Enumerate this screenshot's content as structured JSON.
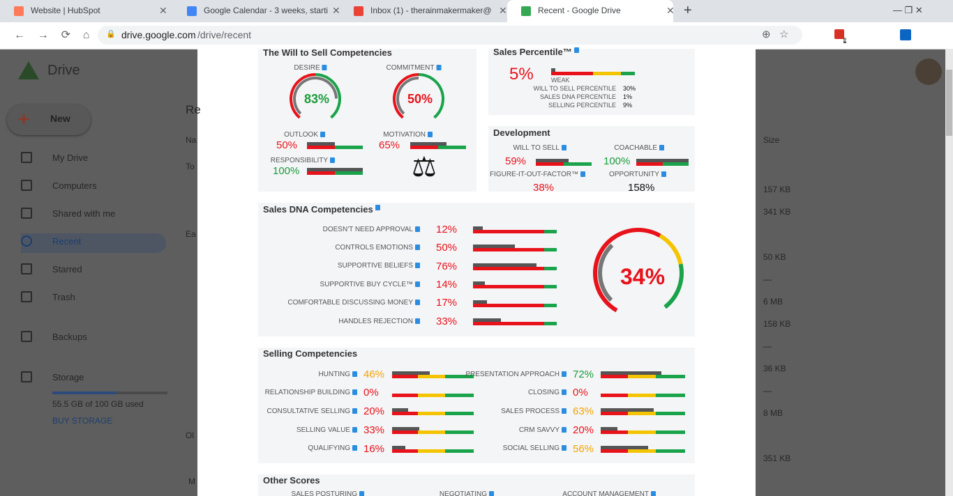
{
  "browser": {
    "tabs": [
      "Website | HubSpot",
      "Google Calendar - 3 weeks, starti",
      "Inbox (1) - therainmakermaker@",
      "Recent - Google Drive"
    ],
    "url_host": "drive.google.com",
    "url_path": "/drive/recent",
    "badge": "4"
  },
  "drive": {
    "logo": "Drive",
    "new": "New",
    "nav": [
      "My Drive",
      "Computers",
      "Shared with me",
      "Recent",
      "Starred",
      "Trash",
      "Backups",
      "Storage"
    ],
    "storage_used": "55.5 GB of 100 GB used",
    "buy": "BUY STORAGE",
    "list_partial": [
      "Re",
      "Na",
      "To",
      "Ea",
      "Ol",
      "M"
    ],
    "size_header": "Size",
    "sizes": [
      "157 KB",
      "341 KB",
      "50 KB",
      "—",
      "6 MB",
      "158 KB",
      "—",
      "36 KB",
      "—",
      "8 MB",
      "351 KB"
    ]
  },
  "report": {
    "will_to_sell": {
      "title": "The Will to Sell Competencies",
      "gauges": [
        {
          "label": "DESIRE",
          "value": 83,
          "value_label": "83%",
          "color": "#1a9c3a"
        },
        {
          "label": "COMMITMENT",
          "value": 50,
          "value_label": "50%",
          "color": "#e8121a"
        }
      ],
      "bars": [
        {
          "label": "OUTLOOK",
          "value": 50,
          "value_label": "50%",
          "color": "#e8121a"
        },
        {
          "label": "MOTIVATION",
          "value": 65,
          "value_label": "65%",
          "color": "#e8121a"
        },
        {
          "label": "RESPONSIBILITY",
          "value": 100,
          "value_label": "100%",
          "color": "#1a9c3a"
        }
      ]
    },
    "sales_percentile": {
      "title": "Sales Percentile™",
      "value": 5,
      "value_label": "5%",
      "rating": "WEAK",
      "rows": [
        {
          "label": "WILL TO SELL PERCENTILE",
          "value": "30%"
        },
        {
          "label": "SALES DNA PERCENTILE",
          "value": "1%"
        },
        {
          "label": "SELLING PERCENTILE",
          "value": "9%"
        }
      ]
    },
    "development": {
      "title": "Development",
      "items": [
        {
          "label": "WILL TO SELL",
          "value": 59,
          "value_label": "59%",
          "color": "#e8121a"
        },
        {
          "label": "COACHABLE",
          "value": 100,
          "value_label": "100%",
          "color": "#1a9c3a"
        },
        {
          "label": "FIGURE-IT-OUT-FACTOR™",
          "value": 38,
          "value_label": "38%",
          "color": "#e8121a"
        },
        {
          "label": "OPPORTUNITY",
          "value": 158,
          "value_label": "158%",
          "color": "#111111"
        }
      ]
    },
    "sales_dna": {
      "title": "Sales DNA Competencies",
      "gauge_value": 34,
      "gauge_label": "34%",
      "items": [
        {
          "label": "DOESN'T NEED APPROVAL",
          "value": 12,
          "value_label": "12%"
        },
        {
          "label": "CONTROLS EMOTIONS",
          "value": 50,
          "value_label": "50%"
        },
        {
          "label": "SUPPORTIVE BELIEFS",
          "value": 76,
          "value_label": "76%"
        },
        {
          "label": "SUPPORTIVE BUY CYCLE™",
          "value": 14,
          "value_label": "14%"
        },
        {
          "label": "COMFORTABLE DISCUSSING MONEY",
          "value": 17,
          "value_label": "17%"
        },
        {
          "label": "HANDLES REJECTION",
          "value": 33,
          "value_label": "33%"
        }
      ]
    },
    "selling": {
      "title": "Selling Competencies",
      "left": [
        {
          "label": "HUNTING",
          "value": 46,
          "value_label": "46%",
          "color": "#f5a400"
        },
        {
          "label": "RELATIONSHIP BUILDING",
          "value": 0,
          "value_label": "0%",
          "color": "#e8121a"
        },
        {
          "label": "CONSULTATIVE SELLING",
          "value": 20,
          "value_label": "20%",
          "color": "#e8121a"
        },
        {
          "label": "SELLING VALUE",
          "value": 33,
          "value_label": "33%",
          "color": "#e8121a"
        },
        {
          "label": "QUALIFYING",
          "value": 16,
          "value_label": "16%",
          "color": "#e8121a"
        }
      ],
      "right": [
        {
          "label": "PRESENTATION APPROACH",
          "value": 72,
          "value_label": "72%",
          "color": "#1a9c3a"
        },
        {
          "label": "CLOSING",
          "value": 0,
          "value_label": "0%",
          "color": "#e8121a"
        },
        {
          "label": "SALES PROCESS",
          "value": 63,
          "value_label": "63%",
          "color": "#f5a400"
        },
        {
          "label": "CRM SAVVY",
          "value": 20,
          "value_label": "20%",
          "color": "#e8121a"
        },
        {
          "label": "SOCIAL SELLING",
          "value": 56,
          "value_label": "56%",
          "color": "#f5a400"
        }
      ]
    },
    "other": {
      "title": "Other Scores",
      "labels": [
        "SALES POSTURING",
        "NEGOTIATING",
        "ACCOUNT MANAGEMENT"
      ]
    }
  }
}
